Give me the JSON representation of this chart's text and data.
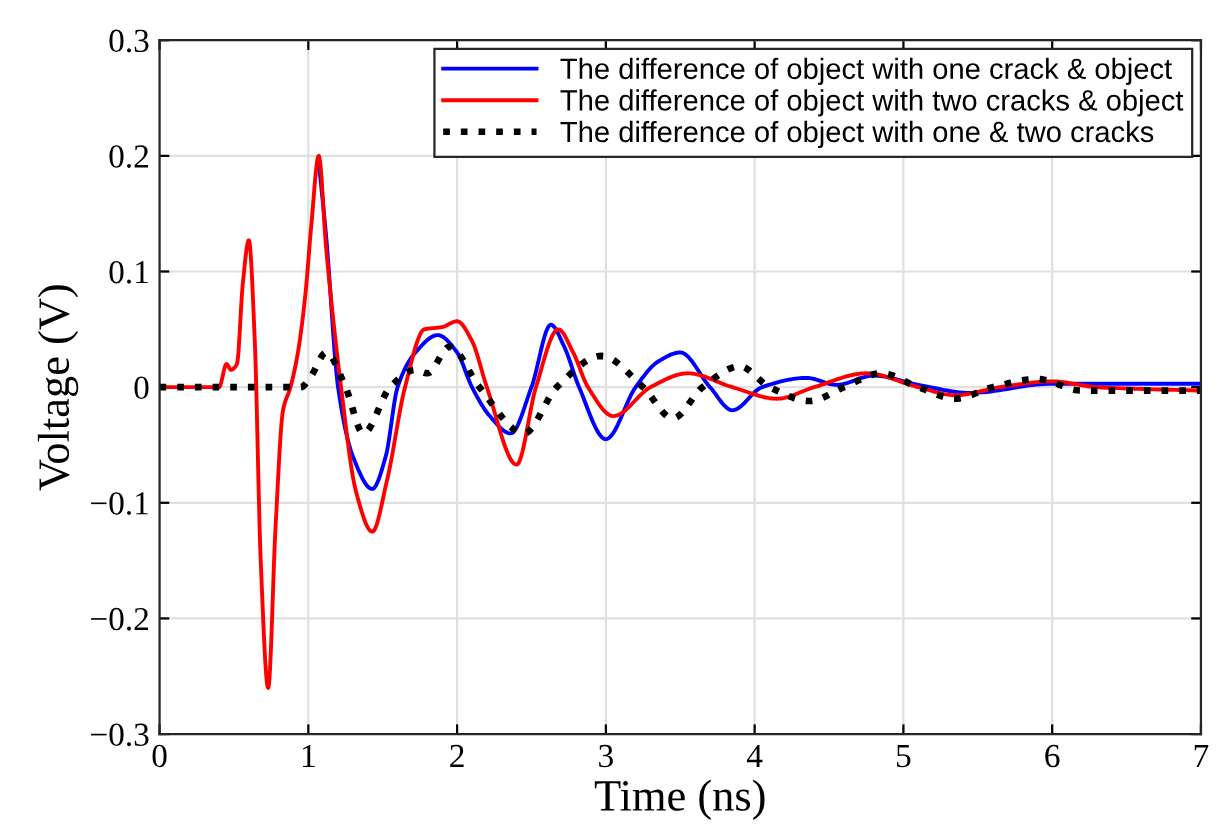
{
  "chart_data": {
    "type": "line",
    "xlabel": "Time (ns)",
    "ylabel": "Voltage (V)",
    "xlim": [
      0,
      7
    ],
    "ylim": [
      -0.3,
      0.3
    ],
    "xticks": [
      0,
      1,
      2,
      3,
      4,
      5,
      6,
      7
    ],
    "yticks": [
      -0.3,
      -0.2,
      -0.1,
      0,
      0.1,
      0.2,
      0.3
    ],
    "grid": true,
    "legend": "top right",
    "marker": "none",
    "series": [
      {
        "name": "The difference of object with one crack & object",
        "color": "#0000ff",
        "line_style": "solid",
        "x": [
          1.07,
          1.12,
          1.2,
          1.3,
          1.43,
          1.52,
          1.6,
          1.72,
          1.87,
          2.0,
          2.1,
          2.22,
          2.36,
          2.5,
          2.63,
          2.72,
          2.82,
          3.0,
          3.2,
          3.35,
          3.5,
          3.7,
          3.85,
          4.05,
          4.35,
          4.55,
          4.8,
          5.1,
          5.45,
          6.0,
          7
        ],
        "values": [
          0.195,
          0.13,
          0,
          -0.06,
          -0.088,
          -0.06,
          0,
          0.03,
          0.045,
          0.03,
          0,
          -0.025,
          -0.04,
          0,
          0.054,
          0.035,
          0,
          -0.045,
          0,
          0.022,
          0.03,
          0,
          -0.02,
          0,
          0.008,
          0.002,
          0.01,
          0.002,
          -0.005,
          0.003,
          0.003
        ]
      },
      {
        "name": "The difference of object with two cracks & object",
        "color": "#ff0000",
        "line_style": "solid",
        "x": [
          0,
          0.4,
          0.45,
          0.48,
          0.52,
          0.56,
          0.6,
          0.64,
          0.68,
          0.73,
          0.78,
          0.83,
          0.88,
          0.93,
          0.98,
          1.02,
          1.07,
          1.12,
          1.22,
          1.32,
          1.43,
          1.53,
          1.65,
          1.78,
          1.9,
          2.0,
          2.1,
          2.2,
          2.4,
          2.53,
          2.68,
          2.78,
          2.88,
          3.05,
          3.3,
          3.55,
          3.85,
          4.15,
          4.4,
          4.75,
          5.1,
          5.35,
          5.65,
          6.0,
          6.3,
          7
        ],
        "values": [
          0,
          0,
          0.02,
          0.015,
          0.02,
          0.09,
          0.127,
          0.04,
          -0.15,
          -0.26,
          -0.12,
          -0.02,
          0,
          0.03,
          0.08,
          0.14,
          0.2,
          0.12,
          0,
          -0.09,
          -0.125,
          -0.08,
          0,
          0.05,
          0.052,
          0.057,
          0.04,
          0,
          -0.067,
          0,
          0.05,
          0.03,
          0,
          -0.025,
          0,
          0.012,
          0,
          -0.01,
          0,
          0.012,
          0,
          -0.007,
          0,
          0.005,
          0,
          -0.003
        ]
      },
      {
        "name": "The difference of object with one & two cracks",
        "color": "#000000",
        "line_style": "dotted",
        "x": [
          0,
          0.95,
          1.02,
          1.12,
          1.25,
          1.37,
          1.55,
          1.72,
          1.8,
          1.95,
          2.15,
          2.45,
          2.67,
          2.97,
          3.25,
          3.45,
          3.65,
          3.9,
          4.1,
          4.37,
          4.6,
          4.85,
          5.1,
          5.35,
          5.6,
          5.9,
          6.2,
          7
        ],
        "values": [
          0,
          0,
          0.01,
          0.03,
          0,
          -0.04,
          0,
          0.015,
          0.012,
          0.035,
          0,
          -0.04,
          0,
          0.027,
          0,
          -0.027,
          0,
          0.018,
          0,
          -0.012,
          0,
          0.012,
          0,
          -0.01,
          0,
          0.007,
          -0.003,
          -0.003
        ]
      }
    ]
  }
}
